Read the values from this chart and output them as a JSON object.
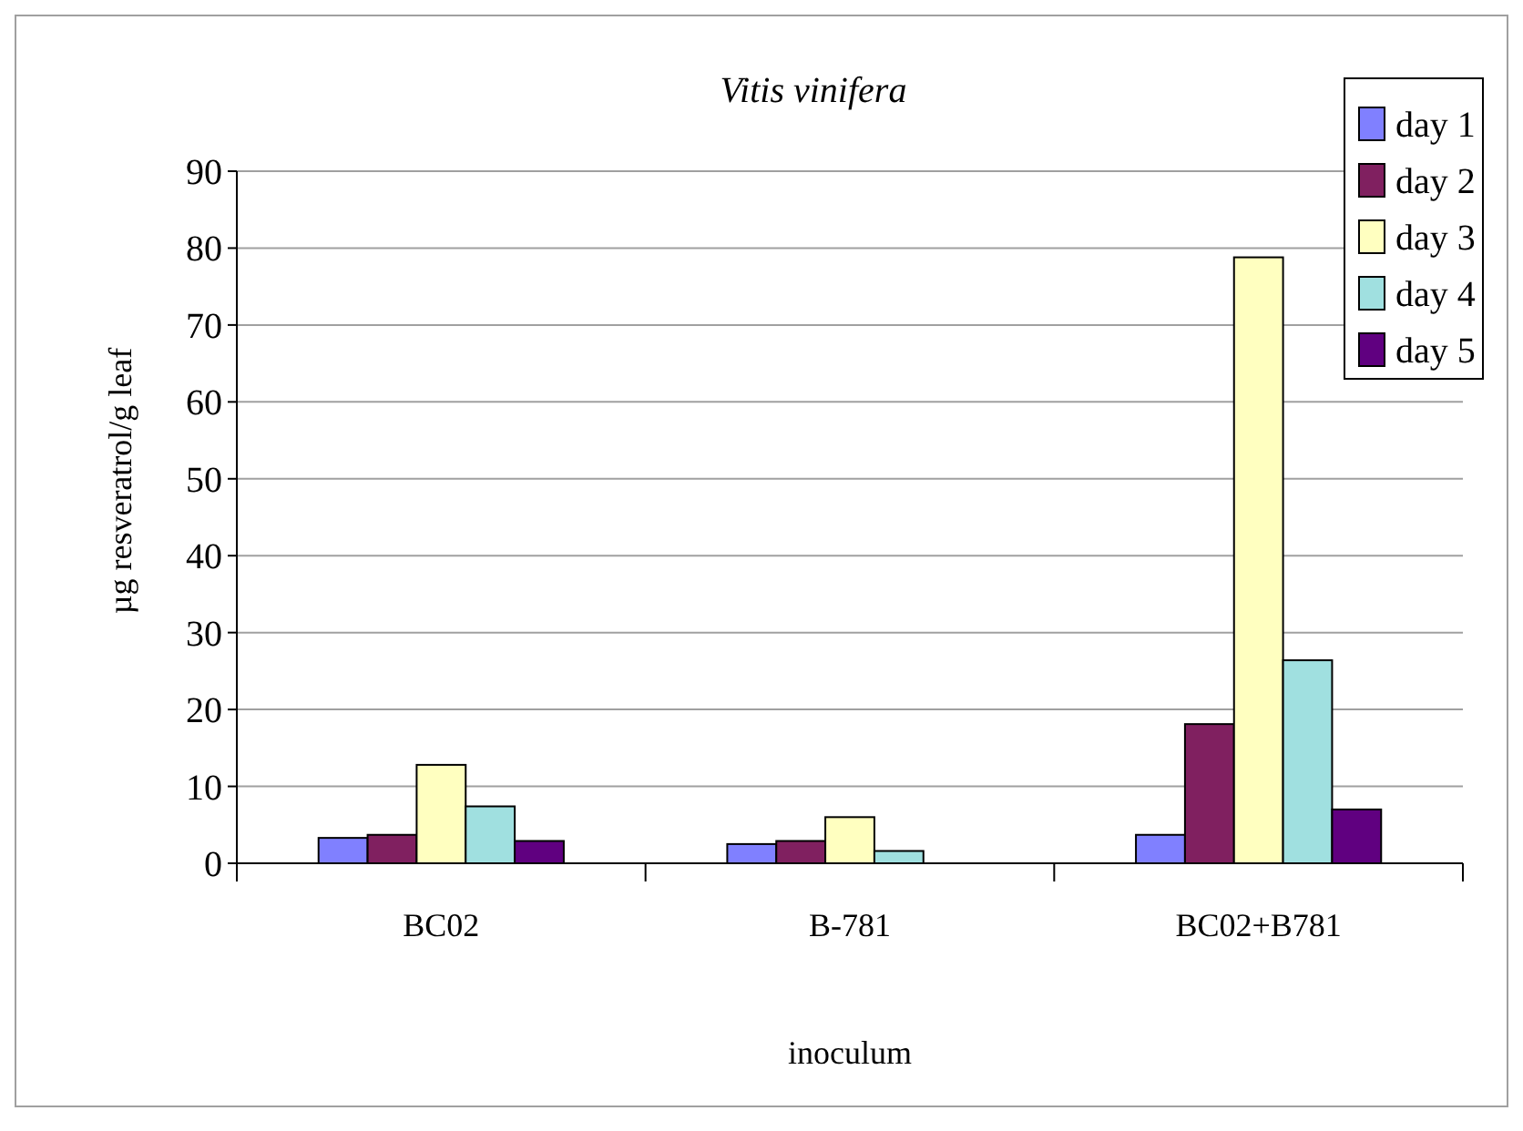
{
  "chart_data": {
    "type": "bar",
    "title": "Vitis vinifera",
    "xlabel": "inoculum",
    "ylabel": "µg resveratrol/g leaf",
    "categories": [
      "BC02",
      "B-781",
      "BC02+B781"
    ],
    "series": [
      {
        "name": "day 1",
        "color": "#8080ff",
        "values": [
          3.3,
          2.5,
          3.7
        ]
      },
      {
        "name": "day 2",
        "color": "#802060",
        "values": [
          3.7,
          2.9,
          18.1
        ]
      },
      {
        "name": "day 3",
        "color": "#ffffc0",
        "values": [
          12.8,
          6.0,
          78.8
        ]
      },
      {
        "name": "day 4",
        "color": "#a0e0e0",
        "values": [
          7.4,
          1.6,
          26.4
        ]
      },
      {
        "name": "day 5",
        "color": "#600080",
        "values": [
          2.9,
          0,
          7.0
        ]
      }
    ],
    "ylim": [
      0,
      90
    ],
    "yticks": [
      0,
      10,
      20,
      30,
      40,
      50,
      60,
      70,
      80,
      90
    ],
    "grid": "y",
    "legend": "top right"
  }
}
